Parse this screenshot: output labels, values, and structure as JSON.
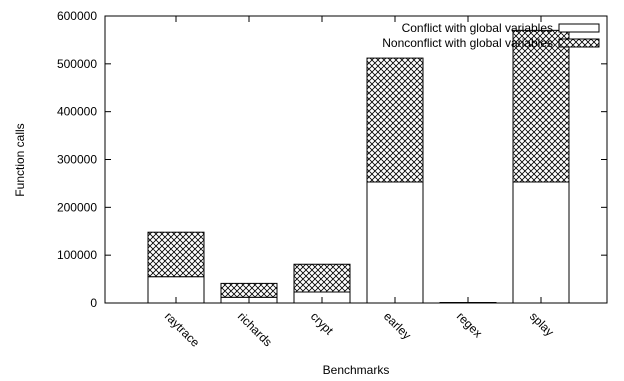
{
  "chart_data": {
    "type": "bar",
    "stacked": true,
    "title": "",
    "xlabel": "Benchmarks",
    "ylabel": "Function calls",
    "ylim": [
      0,
      600000
    ],
    "yticks": [
      0,
      100000,
      200000,
      300000,
      400000,
      500000,
      600000
    ],
    "ytick_labels": [
      "0",
      "100000",
      "200000",
      "300000",
      "400000",
      "500000",
      "600000"
    ],
    "grid": false,
    "legend_position": "top-right",
    "categories": [
      "raytrace",
      "richards",
      "crypt",
      "earley",
      "regex",
      "splay"
    ],
    "series": [
      {
        "name": "Conflict with global variables",
        "pattern": "solid-white",
        "values": [
          55000,
          12000,
          23000,
          253000,
          500,
          253000
        ]
      },
      {
        "name": "Nonconflict with global variables",
        "pattern": "crosshatch",
        "values": [
          93000,
          29000,
          58000,
          259000,
          500,
          317000
        ]
      }
    ]
  }
}
